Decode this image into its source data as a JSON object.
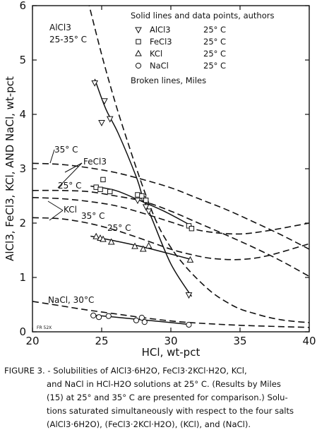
{
  "chart_data": {
    "type": "line",
    "xlabel": "HCl, wt-pct",
    "ylabel": "AlCl3, FeCl3, KCl, AND NaCl, wt-pct",
    "xlim": [
      20,
      40
    ],
    "ylim": [
      0,
      6
    ],
    "xticks": [
      "20",
      "25",
      "30",
      "35",
      "40"
    ],
    "yticks": [
      "0",
      "1",
      "2",
      "3",
      "4",
      "5",
      "6"
    ],
    "grid": false,
    "legend": {
      "title": "Solid lines and data points, authors",
      "entries": [
        {
          "marker": "triangle-down",
          "salt": "AlCl3",
          "temp": "25° C"
        },
        {
          "marker": "square",
          "salt": "FeCl3",
          "temp": "25° C"
        },
        {
          "marker": "triangle-up",
          "salt": "KCl",
          "temp": "25° C"
        },
        {
          "marker": "circle",
          "salt": "NaCl",
          "temp": "25° C"
        }
      ],
      "note": "Broken lines, Miles",
      "placement": "top-right"
    },
    "annotations": {
      "alcl3": "AlCl3",
      "alcl3_temp": "25-35° C",
      "fecl3_35": "35° C",
      "fecl3": "FeCl3",
      "fecl3_25": "25° C",
      "kcl": "KCl",
      "kcl_35": "35° C",
      "kcl_25": "25° C",
      "nacl": "NaCl, 30°C",
      "stamp": "FR 52X"
    },
    "series": [
      {
        "name": "AlCl3",
        "style": "solid",
        "x": [
          24.5,
          25.3,
          26.2,
          27.5,
          28.0,
          28.6,
          30.0,
          31.5
        ],
        "y": [
          4.65,
          4.1,
          3.65,
          2.85,
          2.45,
          2.1,
          1.25,
          0.65
        ]
      },
      {
        "name": "FeCl3",
        "style": "solid",
        "x": [
          24.2,
          26.0,
          27.9,
          29.5,
          31.5
        ],
        "y": [
          2.68,
          2.6,
          2.4,
          2.22,
          1.95
        ]
      },
      {
        "name": "KCl",
        "style": "solid",
        "x": [
          24.2,
          26.0,
          28.0,
          30.0,
          31.5
        ],
        "y": [
          1.76,
          1.67,
          1.56,
          1.43,
          1.33
        ]
      },
      {
        "name": "NaCl",
        "style": "solid",
        "x": [
          24.2,
          26.0,
          28.0,
          30.0,
          31.5
        ],
        "y": [
          0.31,
          0.27,
          0.22,
          0.17,
          0.13
        ]
      },
      {
        "name": "AlCl3 25-35° C",
        "style": "dashed",
        "x": [
          24.0,
          25.0,
          26.0,
          27.0,
          28.0,
          29.0,
          30.0,
          31.0,
          32.0,
          33.0,
          34.0,
          35.0,
          36.0,
          37.0,
          38.0,
          39.0,
          40.0
        ],
        "y": [
          6.1,
          5.1,
          4.2,
          3.4,
          2.65,
          2.0,
          1.55,
          1.22,
          0.95,
          0.72,
          0.55,
          0.42,
          0.34,
          0.27,
          0.22,
          0.19,
          0.17
        ]
      },
      {
        "name": "FeCl3 35° C",
        "style": "dashed",
        "x": [
          20,
          22,
          24,
          26,
          28,
          30,
          32,
          34,
          36,
          38,
          40
        ],
        "y": [
          3.1,
          3.08,
          3.02,
          2.93,
          2.8,
          2.65,
          2.45,
          2.25,
          2.02,
          1.78,
          1.52
        ]
      },
      {
        "name": "FeCl3 25° C",
        "style": "dashed",
        "x": [
          20,
          22,
          24,
          26,
          28,
          30,
          32,
          34,
          36,
          38,
          40
        ],
        "y": [
          2.6,
          2.6,
          2.58,
          2.5,
          2.4,
          2.22,
          2.0,
          1.78,
          1.55,
          1.3,
          1.02
        ]
      },
      {
        "name": "KCl 35° C",
        "style": "dashed",
        "x": [
          20,
          22,
          24,
          26,
          28,
          30,
          31.5,
          33,
          35,
          37,
          40
        ],
        "y": [
          2.47,
          2.45,
          2.4,
          2.32,
          2.18,
          2.02,
          1.9,
          1.83,
          1.8,
          1.86,
          2.0
        ]
      },
      {
        "name": "KCl 25° C",
        "style": "dashed",
        "x": [
          20,
          22,
          24,
          26,
          28,
          30,
          31.5,
          33,
          35,
          37,
          40
        ],
        "y": [
          2.1,
          2.08,
          2.0,
          1.87,
          1.7,
          1.52,
          1.42,
          1.35,
          1.33,
          1.4,
          1.62
        ]
      },
      {
        "name": "NaCl 30°C",
        "style": "dashed",
        "x": [
          20,
          22,
          24,
          26,
          28,
          30,
          32,
          35,
          40
        ],
        "y": [
          0.56,
          0.48,
          0.4,
          0.33,
          0.26,
          0.2,
          0.16,
          0.12,
          0.08
        ]
      }
    ],
    "points": [
      {
        "salt": "AlCl3",
        "marker": "triangle-down",
        "x": [
          24.5,
          25.0,
          25.2,
          25.6,
          27.6,
          28.0,
          28.2,
          28.4,
          31.3
        ],
        "y": [
          4.58,
          3.85,
          4.25,
          3.92,
          2.42,
          2.45,
          2.3,
          2.22,
          0.68
        ]
      },
      {
        "salt": "FeCl3",
        "marker": "square",
        "x": [
          24.6,
          24.9,
          25.1,
          25.6,
          27.6,
          27.9,
          28.2,
          31.3,
          31.5
        ],
        "y": [
          2.66,
          2.62,
          2.8,
          2.58,
          2.52,
          2.5,
          2.42,
          1.95,
          1.9
        ]
      },
      {
        "salt": "KCl",
        "marker": "triangle-up",
        "x": [
          24.6,
          24.9,
          25.1,
          25.7,
          27.4,
          28.0,
          28.4,
          31.4
        ],
        "y": [
          1.75,
          1.72,
          1.7,
          1.65,
          1.57,
          1.52,
          1.58,
          1.32
        ]
      },
      {
        "salt": "NaCl",
        "marker": "circle",
        "x": [
          24.4,
          24.8,
          25.5,
          27.5,
          27.9,
          28.1,
          31.3
        ],
        "y": [
          0.3,
          0.27,
          0.29,
          0.21,
          0.26,
          0.18,
          0.13
        ]
      }
    ]
  },
  "caption": {
    "line1": "FIGURE 3. - Solubilities of AlCl3·6H2O, FeCl3·2KCl·H2O, KCl,",
    "line2": "and NaCl in HCl-H2O solutions at 25° C. (Results by Miles",
    "line3": "(15) at 25° and 35° C are presented for comparison.) Solu-",
    "line4": "tions saturated simultaneously with respect to the four salts",
    "line5": "(AlCl3·6H2O), (FeCl3·2KCl·H2O), (KCl), and (NaCl)."
  }
}
